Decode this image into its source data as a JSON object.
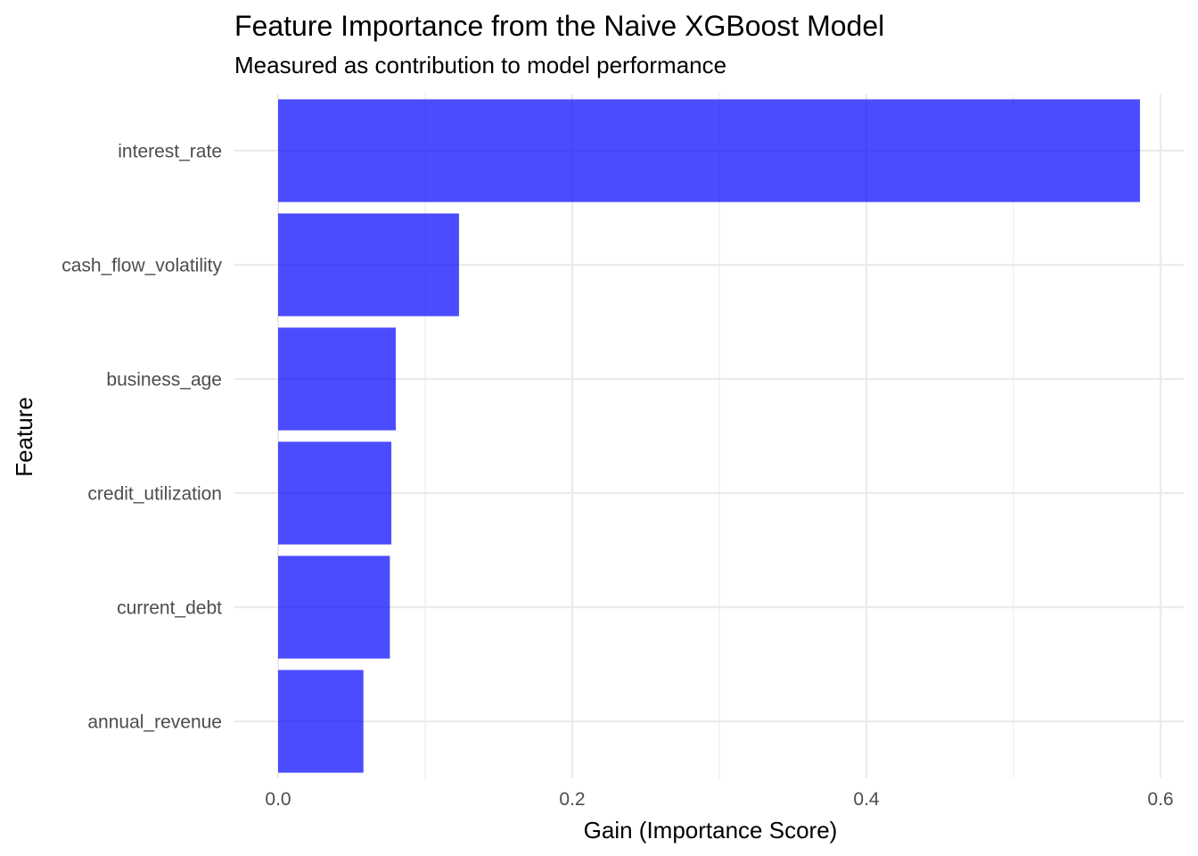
{
  "chart_data": {
    "type": "bar",
    "orientation": "horizontal",
    "title": "Feature Importance from the Naive XGBoost Model",
    "subtitle": "Measured as contribution to model performance",
    "xlabel": "Gain (Importance Score)",
    "ylabel": "Feature",
    "categories": [
      "interest_rate",
      "cash_flow_volatility",
      "business_age",
      "credit_utilization",
      "current_debt",
      "annual_revenue"
    ],
    "values": [
      0.586,
      0.123,
      0.08,
      0.077,
      0.076,
      0.058
    ],
    "xlim": [
      -0.03,
      0.61
    ],
    "xticks": [
      0.0,
      0.2,
      0.4,
      0.6
    ],
    "xtick_labels": [
      "0.0",
      "0.2",
      "0.4",
      "0.6"
    ],
    "grid": true,
    "bar_color": "#0000ff",
    "bar_opacity": 0.7,
    "legend": "none"
  }
}
